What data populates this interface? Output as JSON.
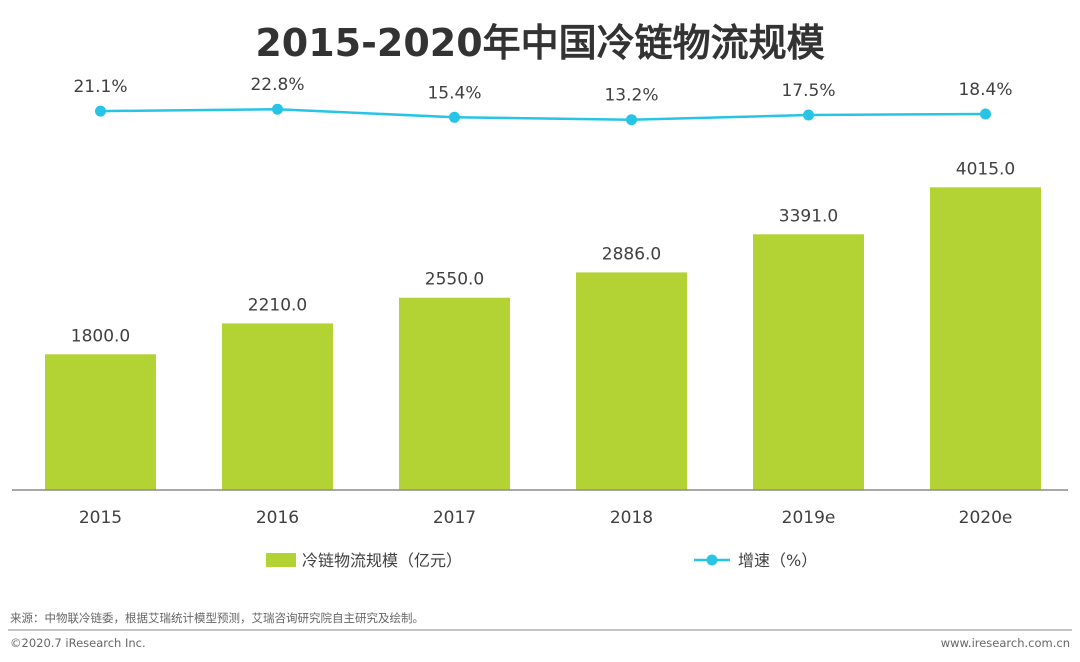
{
  "chart_data": {
    "type": "bar",
    "title": "2015-2020年中国冷链物流规模",
    "categories": [
      "2015",
      "2016",
      "2017",
      "2018",
      "2019e",
      "2020e"
    ],
    "series": [
      {
        "name": "冷链物流规模（亿元）",
        "type": "bar",
        "values": [
          1800.0,
          2210.0,
          2550.0,
          2886.0,
          3391.0,
          4015.0
        ],
        "labels": [
          "1800.0",
          "2210.0",
          "2550.0",
          "2886.0",
          "3391.0",
          "4015.0"
        ],
        "color": "#b3d335"
      },
      {
        "name": "增速（%）",
        "type": "line",
        "values": [
          21.1,
          22.8,
          15.4,
          13.2,
          17.5,
          18.4
        ],
        "labels": [
          "21.1%",
          "22.8%",
          "15.4%",
          "13.2%",
          "17.5%",
          "18.4%"
        ],
        "color": "#27c4e6"
      }
    ],
    "bar_ylim": [
      0,
      5000
    ],
    "line_ylim": [
      -120,
      100
    ],
    "legend_position": "bottom",
    "grid": false
  },
  "source": "来源：中物联冷链委，根据艾瑞统计模型预测，艾瑞咨询研究院自主研究及绘制。",
  "footer": {
    "copyright": "©2020.7 iResearch Inc.",
    "website": "www.iresearch.com.cn"
  }
}
